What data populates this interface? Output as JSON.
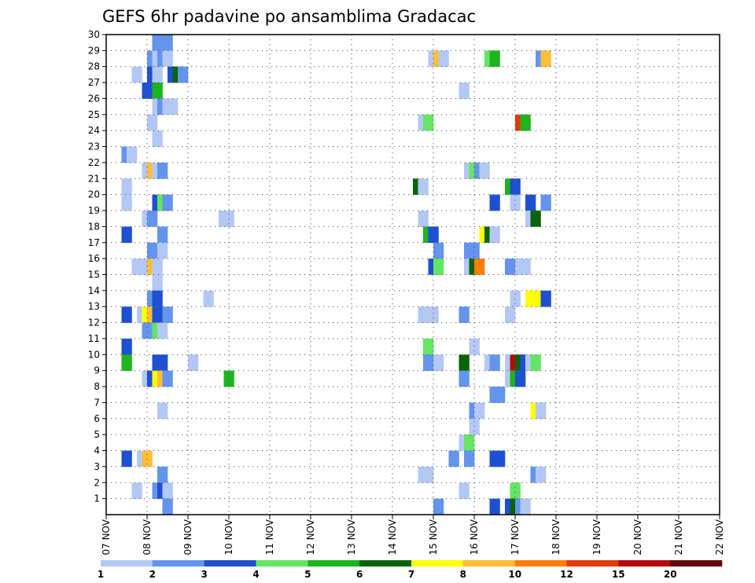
{
  "chart_data": {
    "type": "heatmap",
    "title": "GEFS 6hr padavine po ansamblima Gradacac",
    "x_tick_labels": [
      "07 NOV",
      "08 NOV",
      "09 NOV",
      "10 NOV",
      "11 NOV",
      "12 NOV",
      "13 NOV",
      "14 NOV",
      "15 NOV",
      "16 NOV",
      "17 NOV",
      "18 NOV",
      "19 NOV",
      "20 NOV",
      "21 NOV",
      "22 NOV"
    ],
    "y_tick_labels": [
      "1",
      "2",
      "3",
      "4",
      "5",
      "6",
      "7",
      "8",
      "9",
      "10",
      "11",
      "12",
      "13",
      "14",
      "15",
      "16",
      "17",
      "18",
      "19",
      "20",
      "21",
      "22",
      "23",
      "24",
      "25",
      "26",
      "27",
      "28",
      "29",
      "30"
    ],
    "y_range": [
      0,
      30
    ],
    "grid": true,
    "colorbar": {
      "colors": [
        "#b4c8f5",
        "#6495ed",
        "#1e50d2",
        "#64e664",
        "#1eb41e",
        "#0a640a",
        "#ffff00",
        "#ffbe37",
        "#ff7d0a",
        "#e13c0a",
        "#b40a0a",
        "#640a0a"
      ],
      "labels": [
        "1",
        "2",
        "3",
        "4",
        "5",
        "6",
        "7",
        "8",
        "10",
        "12",
        "15",
        "20"
      ]
    },
    "cells": [
      {
        "x": 4.5,
        "y": 30,
        "c": 2
      },
      {
        "x": 5.0,
        "y": 30,
        "c": 2
      },
      {
        "x": 5.5,
        "y": 30,
        "c": 2
      },
      {
        "x": 4.0,
        "y": 29,
        "c": 2
      },
      {
        "x": 4.5,
        "y": 29,
        "c": 1
      },
      {
        "x": 5.0,
        "y": 29,
        "c": 2
      },
      {
        "x": 5.5,
        "y": 29,
        "c": 1
      },
      {
        "x": 31.5,
        "y": 29,
        "c": 1
      },
      {
        "x": 32.0,
        "y": 29,
        "c": 8
      },
      {
        "x": 32.5,
        "y": 29,
        "c": 1
      },
      {
        "x": 37.0,
        "y": 29,
        "c": 4
      },
      {
        "x": 37.5,
        "y": 29,
        "c": 5
      },
      {
        "x": 42.0,
        "y": 29,
        "c": 2
      },
      {
        "x": 42.5,
        "y": 29,
        "c": 8
      },
      {
        "x": 2.5,
        "y": 28,
        "c": 1
      },
      {
        "x": 4.0,
        "y": 28,
        "c": 3
      },
      {
        "x": 4.5,
        "y": 28,
        "c": 1
      },
      {
        "x": 6.0,
        "y": 28,
        "c": 3
      },
      {
        "x": 6.5,
        "y": 28,
        "c": 6
      },
      {
        "x": 7.0,
        "y": 28,
        "c": 2
      },
      {
        "x": 3.5,
        "y": 27,
        "c": 3
      },
      {
        "x": 4.0,
        "y": 27,
        "c": 3
      },
      {
        "x": 4.5,
        "y": 27,
        "c": 5
      },
      {
        "x": 34.5,
        "y": 27,
        "c": 1
      },
      {
        "x": 4.5,
        "y": 26,
        "c": 1
      },
      {
        "x": 5.0,
        "y": 26,
        "c": 2
      },
      {
        "x": 5.5,
        "y": 26,
        "c": 1
      },
      {
        "x": 6.0,
        "y": 26,
        "c": 1
      },
      {
        "x": 4.0,
        "y": 25,
        "c": 1
      },
      {
        "x": 30.5,
        "y": 25,
        "c": 1
      },
      {
        "x": 31.0,
        "y": 25,
        "c": 4
      },
      {
        "x": 40.0,
        "y": 25,
        "c": 10
      },
      {
        "x": 40.5,
        "y": 25,
        "c": 5
      },
      {
        "x": 4.5,
        "y": 24,
        "c": 1
      },
      {
        "x": 1.5,
        "y": 23,
        "c": 2
      },
      {
        "x": 2.0,
        "y": 23,
        "c": 1
      },
      {
        "x": 3.5,
        "y": 22,
        "c": 1
      },
      {
        "x": 4.0,
        "y": 22,
        "c": 8
      },
      {
        "x": 4.5,
        "y": 22,
        "c": 1
      },
      {
        "x": 5.0,
        "y": 22,
        "c": 2
      },
      {
        "x": 35.0,
        "y": 22,
        "c": 1
      },
      {
        "x": 35.5,
        "y": 22,
        "c": 4
      },
      {
        "x": 36.0,
        "y": 22,
        "c": 2
      },
      {
        "x": 36.5,
        "y": 22,
        "c": 1
      },
      {
        "x": 1.5,
        "y": 21,
        "c": 1
      },
      {
        "x": 30.0,
        "y": 21,
        "c": 6
      },
      {
        "x": 30.5,
        "y": 21,
        "c": 1
      },
      {
        "x": 39.0,
        "y": 21,
        "c": 5
      },
      {
        "x": 39.5,
        "y": 21,
        "c": 3
      },
      {
        "x": 1.5,
        "y": 20,
        "c": 1
      },
      {
        "x": 4.5,
        "y": 20,
        "c": 3
      },
      {
        "x": 5.0,
        "y": 20,
        "c": 4
      },
      {
        "x": 5.5,
        "y": 20,
        "c": 2
      },
      {
        "x": 37.5,
        "y": 20,
        "c": 3
      },
      {
        "x": 39.5,
        "y": 20,
        "c": 1
      },
      {
        "x": 41.0,
        "y": 20,
        "c": 3
      },
      {
        "x": 42.5,
        "y": 20,
        "c": 2
      },
      {
        "x": 3.5,
        "y": 19,
        "c": 1
      },
      {
        "x": 4.0,
        "y": 19,
        "c": 2
      },
      {
        "x": 11.0,
        "y": 19,
        "c": 1
      },
      {
        "x": 11.5,
        "y": 19,
        "c": 1
      },
      {
        "x": 30.5,
        "y": 19,
        "c": 1
      },
      {
        "x": 41.0,
        "y": 19,
        "c": 1
      },
      {
        "x": 41.5,
        "y": 19,
        "c": 6
      },
      {
        "x": 1.5,
        "y": 18,
        "c": 3
      },
      {
        "x": 5.0,
        "y": 18,
        "c": 2
      },
      {
        "x": 31.0,
        "y": 18,
        "c": 5
      },
      {
        "x": 31.5,
        "y": 18,
        "c": 3
      },
      {
        "x": 36.5,
        "y": 18,
        "c": 7
      },
      {
        "x": 37.0,
        "y": 18,
        "c": 6
      },
      {
        "x": 37.5,
        "y": 18,
        "c": 1
      },
      {
        "x": 4.0,
        "y": 17,
        "c": 2
      },
      {
        "x": 5.0,
        "y": 17,
        "c": 1
      },
      {
        "x": 32.0,
        "y": 17,
        "c": 2
      },
      {
        "x": 35.0,
        "y": 17,
        "c": 2
      },
      {
        "x": 35.5,
        "y": 17,
        "c": 2
      },
      {
        "x": 2.5,
        "y": 16,
        "c": 1
      },
      {
        "x": 3.5,
        "y": 16,
        "c": 1
      },
      {
        "x": 4.0,
        "y": 16,
        "c": 8
      },
      {
        "x": 4.5,
        "y": 16,
        "c": 1
      },
      {
        "x": 31.5,
        "y": 16,
        "c": 3
      },
      {
        "x": 32.0,
        "y": 16,
        "c": 4
      },
      {
        "x": 35.0,
        "y": 16,
        "c": 1
      },
      {
        "x": 35.5,
        "y": 16,
        "c": 6
      },
      {
        "x": 36.0,
        "y": 16,
        "c": 9
      },
      {
        "x": 39.0,
        "y": 16,
        "c": 2
      },
      {
        "x": 39.5,
        "y": 16,
        "c": 2
      },
      {
        "x": 40.0,
        "y": 16,
        "c": 1
      },
      {
        "x": 40.5,
        "y": 16,
        "c": 1
      },
      {
        "x": 4.5,
        "y": 15,
        "c": 1
      },
      {
        "x": 4.0,
        "y": 14,
        "c": 2
      },
      {
        "x": 4.5,
        "y": 14,
        "c": 3
      },
      {
        "x": 9.5,
        "y": 14,
        "c": 1
      },
      {
        "x": 39.5,
        "y": 14,
        "c": 1
      },
      {
        "x": 41.0,
        "y": 14,
        "c": 7
      },
      {
        "x": 41.5,
        "y": 14,
        "c": 7
      },
      {
        "x": 42.0,
        "y": 14,
        "c": 7
      },
      {
        "x": 42.5,
        "y": 14,
        "c": 3
      },
      {
        "x": 1.5,
        "y": 13,
        "c": 3
      },
      {
        "x": 3.0,
        "y": 13,
        "c": 1
      },
      {
        "x": 3.5,
        "y": 13,
        "c": 7
      },
      {
        "x": 4.0,
        "y": 13,
        "c": 8
      },
      {
        "x": 4.5,
        "y": 13,
        "c": 3
      },
      {
        "x": 5.5,
        "y": 13,
        "c": 2
      },
      {
        "x": 30.5,
        "y": 13,
        "c": 1
      },
      {
        "x": 31.0,
        "y": 13,
        "c": 1
      },
      {
        "x": 31.5,
        "y": 13,
        "c": 1
      },
      {
        "x": 34.5,
        "y": 13,
        "c": 2
      },
      {
        "x": 39.0,
        "y": 13,
        "c": 1
      },
      {
        "x": 3.5,
        "y": 12,
        "c": 2
      },
      {
        "x": 4.5,
        "y": 12,
        "c": 4
      },
      {
        "x": 5.0,
        "y": 12,
        "c": 1
      },
      {
        "x": 1.5,
        "y": 11,
        "c": 3
      },
      {
        "x": 31.0,
        "y": 11,
        "c": 4
      },
      {
        "x": 35.5,
        "y": 11,
        "c": 1
      },
      {
        "x": 1.5,
        "y": 10,
        "c": 5
      },
      {
        "x": 4.5,
        "y": 10,
        "c": 3
      },
      {
        "x": 5.0,
        "y": 10,
        "c": 3
      },
      {
        "x": 8.0,
        "y": 10,
        "c": 1
      },
      {
        "x": 31.0,
        "y": 10,
        "c": 2
      },
      {
        "x": 32.0,
        "y": 10,
        "c": 1
      },
      {
        "x": 34.5,
        "y": 10,
        "c": 6
      },
      {
        "x": 37.0,
        "y": 10,
        "c": 1
      },
      {
        "x": 37.5,
        "y": 10,
        "c": 2
      },
      {
        "x": 39.0,
        "y": 10,
        "c": 1
      },
      {
        "x": 39.5,
        "y": 10,
        "c": 11
      },
      {
        "x": 40.0,
        "y": 10,
        "c": 6
      },
      {
        "x": 40.5,
        "y": 10,
        "c": 3
      },
      {
        "x": 41.0,
        "y": 10,
        "c": 1
      },
      {
        "x": 41.5,
        "y": 10,
        "c": 4
      },
      {
        "x": 3.5,
        "y": 9,
        "c": 1
      },
      {
        "x": 4.0,
        "y": 9,
        "c": 3
      },
      {
        "x": 4.5,
        "y": 9,
        "c": 7
      },
      {
        "x": 5.0,
        "y": 9,
        "c": 8
      },
      {
        "x": 5.5,
        "y": 9,
        "c": 2
      },
      {
        "x": 11.5,
        "y": 9,
        "c": 5
      },
      {
        "x": 34.5,
        "y": 9,
        "c": 2
      },
      {
        "x": 39.0,
        "y": 9,
        "c": 1
      },
      {
        "x": 39.5,
        "y": 9,
        "c": 5
      },
      {
        "x": 40.0,
        "y": 9,
        "c": 3
      },
      {
        "x": 37.5,
        "y": 8,
        "c": 2
      },
      {
        "x": 38.0,
        "y": 8,
        "c": 2
      },
      {
        "x": 5.0,
        "y": 7,
        "c": 1
      },
      {
        "x": 35.5,
        "y": 7,
        "c": 2
      },
      {
        "x": 36.0,
        "y": 7,
        "c": 1
      },
      {
        "x": 41.5,
        "y": 7,
        "c": 7
      },
      {
        "x": 42.0,
        "y": 7,
        "c": 1
      },
      {
        "x": 35.5,
        "y": 6,
        "c": 1
      },
      {
        "x": 34.5,
        "y": 5,
        "c": 1
      },
      {
        "x": 35.0,
        "y": 5,
        "c": 4
      },
      {
        "x": 1.5,
        "y": 4,
        "c": 3
      },
      {
        "x": 3.0,
        "y": 4,
        "c": 1
      },
      {
        "x": 3.5,
        "y": 4,
        "c": 8
      },
      {
        "x": 33.5,
        "y": 4,
        "c": 2
      },
      {
        "x": 35.0,
        "y": 4,
        "c": 2
      },
      {
        "x": 37.5,
        "y": 4,
        "c": 3
      },
      {
        "x": 38.0,
        "y": 4,
        "c": 3
      },
      {
        "x": 5.0,
        "y": 3,
        "c": 2
      },
      {
        "x": 30.5,
        "y": 3,
        "c": 1
      },
      {
        "x": 31.0,
        "y": 3,
        "c": 1
      },
      {
        "x": 41.5,
        "y": 3,
        "c": 2
      },
      {
        "x": 42.0,
        "y": 3,
        "c": 1
      },
      {
        "x": 2.5,
        "y": 2,
        "c": 1
      },
      {
        "x": 4.5,
        "y": 2,
        "c": 2
      },
      {
        "x": 5.0,
        "y": 2,
        "c": 3
      },
      {
        "x": 5.5,
        "y": 2,
        "c": 1
      },
      {
        "x": 34.5,
        "y": 2,
        "c": 1
      },
      {
        "x": 39.5,
        "y": 2,
        "c": 4
      },
      {
        "x": 5.5,
        "y": 1,
        "c": 2
      },
      {
        "x": 32.0,
        "y": 1,
        "c": 2
      },
      {
        "x": 37.5,
        "y": 1,
        "c": 3
      },
      {
        "x": 39.0,
        "y": 1,
        "c": 3
      },
      {
        "x": 39.5,
        "y": 1,
        "c": 6
      },
      {
        "x": 40.0,
        "y": 1,
        "c": 2
      },
      {
        "x": 40.5,
        "y": 1,
        "c": 1
      }
    ]
  }
}
